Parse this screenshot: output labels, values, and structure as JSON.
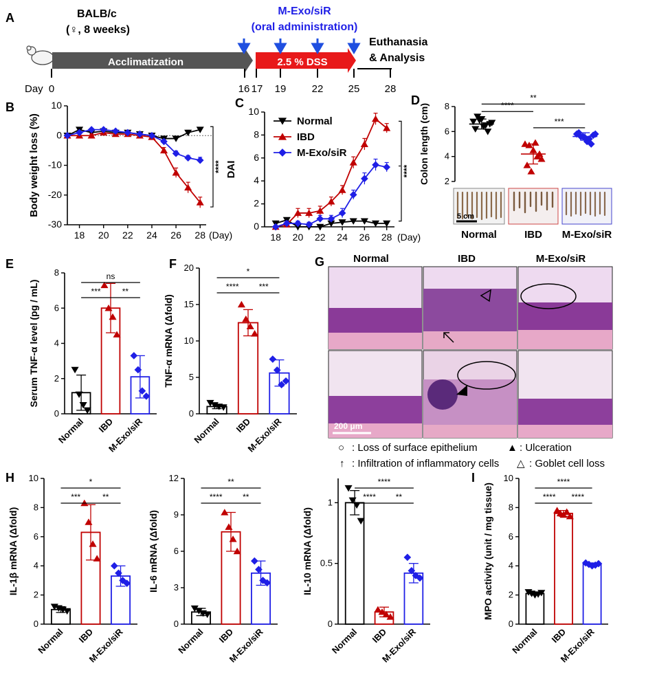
{
  "colors": {
    "normal": "#000000",
    "ibd": "#c00000",
    "mexo": "#1f1fe6",
    "dss": "#e8191a",
    "arrow_blue": "#1f4fe0",
    "accl": "#555555"
  },
  "panel_labels": [
    "A",
    "B",
    "C",
    "D",
    "E",
    "F",
    "G",
    "H",
    "I"
  ],
  "timeline": {
    "strain": "BALB/c",
    "strain_detail": "(♀, 8 weeks)",
    "treatment": "M-Exo/siR",
    "treatment_route": "(oral administration)",
    "acclimatization": "Acclimatization",
    "dss": "2.5 % DSS",
    "end_label_1": "Euthanasia",
    "end_label_2": "& Analysis",
    "day_label": "Day",
    "days": [
      "0",
      "16",
      "17",
      "19",
      "22",
      "25",
      "28"
    ],
    "dose_days": [
      16,
      19,
      22,
      25
    ]
  },
  "chart_data": [
    {
      "id": "B",
      "type": "line",
      "ylabel": "Body weight loss (%)",
      "xlabel": "(Day)",
      "ylim": [
        -30,
        10
      ],
      "yticks": [
        -30,
        -20,
        -10,
        0,
        10
      ],
      "xlim": [
        17,
        28.5
      ],
      "xticks": [
        18,
        20,
        22,
        24,
        26,
        28
      ],
      "significance": "****",
      "series": [
        {
          "name": "Normal",
          "marker": "tri-down",
          "x": [
            17,
            18,
            19,
            20,
            21,
            22,
            23,
            24,
            25,
            26,
            27,
            28
          ],
          "values": [
            0,
            2,
            1,
            1.5,
            1,
            1,
            0.5,
            0,
            -1,
            -1,
            1,
            2
          ],
          "err": [
            0.5,
            0.6,
            0.5,
            0.5,
            0.5,
            0.5,
            0.5,
            0.5,
            0.5,
            0.8,
            0.8,
            0.8
          ]
        },
        {
          "name": "IBD",
          "marker": "tri-up",
          "x": [
            17,
            18,
            19,
            20,
            21,
            22,
            23,
            24,
            25,
            26,
            27,
            28
          ],
          "values": [
            0,
            0,
            0,
            1,
            0.5,
            0.5,
            0,
            -0.5,
            -5,
            -12.5,
            -17.5,
            -22.5
          ],
          "err": [
            0.5,
            0.5,
            0.5,
            0.5,
            0.5,
            0.5,
            0.5,
            0.5,
            1,
            1.6,
            1.8,
            1.8
          ]
        },
        {
          "name": "M-Exo/siR",
          "marker": "diamond",
          "x": [
            17,
            18,
            19,
            20,
            21,
            22,
            23,
            24,
            25,
            26,
            27,
            28
          ],
          "values": [
            0,
            1,
            2,
            2,
            1.5,
            1,
            0.5,
            0,
            -2,
            -6,
            -7.5,
            -8.3
          ],
          "err": [
            0.4,
            0.4,
            0.4,
            0.4,
            0.4,
            0.4,
            0.4,
            0.4,
            0.6,
            0.8,
            0.8,
            1
          ]
        }
      ]
    },
    {
      "id": "C",
      "type": "line",
      "ylabel": "DAI",
      "xlabel": "(Day)",
      "ylim": [
        0,
        10
      ],
      "yticks": [
        0,
        2,
        4,
        6,
        8,
        10
      ],
      "xlim": [
        17,
        28.7
      ],
      "xticks": [
        18,
        20,
        22,
        24,
        26,
        28
      ],
      "significance": "****",
      "legend": [
        "Normal",
        "IBD",
        "M-Exo/siR"
      ],
      "series": [
        {
          "name": "Normal",
          "marker": "tri-down",
          "x": [
            18,
            19,
            20,
            21,
            22,
            23,
            24,
            25,
            26,
            27,
            28
          ],
          "values": [
            0.3,
            0.6,
            0,
            0,
            0,
            0.3,
            0.4,
            0.5,
            0.5,
            0.3,
            0.3
          ],
          "err": [
            0.2,
            0.2,
            0.1,
            0.1,
            0.1,
            0.1,
            0.1,
            0.1,
            0.1,
            0.1,
            0.1
          ]
        },
        {
          "name": "IBD",
          "marker": "tri-up",
          "x": [
            18,
            19,
            20,
            21,
            22,
            23,
            24,
            25,
            26,
            27,
            28
          ],
          "values": [
            0,
            0.2,
            1.2,
            1.2,
            1.4,
            2.2,
            3.2,
            5.6,
            7.2,
            9.4,
            8.6
          ],
          "err": [
            0.1,
            0.2,
            0.4,
            0.4,
            0.4,
            0.4,
            0.4,
            0.5,
            0.5,
            0.5,
            0.4
          ]
        },
        {
          "name": "M-Exo/siR",
          "marker": "diamond",
          "x": [
            18,
            19,
            20,
            21,
            22,
            23,
            24,
            25,
            26,
            27,
            28
          ],
          "values": [
            0,
            0.3,
            0.3,
            0.2,
            0.7,
            0.7,
            1.2,
            2.8,
            4.2,
            5.4,
            5.2
          ],
          "err": [
            0.1,
            0.2,
            0.2,
            0.2,
            0.3,
            0.3,
            0.4,
            0.4,
            0.5,
            0.5,
            0.4
          ]
        }
      ]
    },
    {
      "id": "D",
      "type": "scatter",
      "ylabel": "Colon length (cm)",
      "ylim": [
        2,
        8
      ],
      "yticks": [
        2,
        4,
        6,
        8
      ],
      "categories": [
        "Normal",
        "IBD",
        "M-Exo/siR"
      ],
      "means": [
        6.6,
        4.2,
        5.6
      ],
      "sd": [
        0.4,
        0.8,
        0.3
      ],
      "points": [
        [
          6.8,
          7.2,
          7.0,
          6.5,
          6.6,
          6.2,
          6.9,
          6.4,
          6.0,
          6.7
        ],
        [
          5.0,
          4.9,
          4.5,
          4.0,
          3.8,
          3.3,
          2.8,
          5.1,
          4.2
        ],
        [
          5.8,
          5.6,
          5.5,
          5.4,
          5.7,
          5.9,
          5.6,
          5.2,
          5.0,
          5.8
        ]
      ],
      "significance": [
        {
          "a": 0,
          "b": 1,
          "label": "****"
        },
        {
          "a": 1,
          "b": 2,
          "label": "***"
        },
        {
          "a": 0,
          "b": 2,
          "label": "**"
        }
      ],
      "photo_scale": "5 cm"
    },
    {
      "id": "E",
      "type": "bar",
      "ylabel": "Serum TNF-α level (pg / mL)",
      "ylim": [
        0,
        8
      ],
      "yticks": [
        0,
        2,
        4,
        6,
        8
      ],
      "categories": [
        "Normal",
        "IBD",
        "M-Exo/siR"
      ],
      "values": [
        1.2,
        6.0,
        2.1
      ],
      "err": [
        1.0,
        1.4,
        1.2
      ],
      "points": [
        [
          2.5,
          1.1,
          0.5,
          0.2
        ],
        [
          7.3,
          6.0,
          5.5,
          4.5
        ],
        [
          3.3,
          2.5,
          1.3,
          1.0
        ]
      ],
      "significance": [
        {
          "a": 0,
          "b": 1,
          "label": "***"
        },
        {
          "a": 1,
          "b": 2,
          "label": "**"
        },
        {
          "a": 0,
          "b": 2,
          "label": "ns"
        }
      ]
    },
    {
      "id": "F",
      "type": "bar",
      "ylabel": "TNF-α mRNA (Δfold)",
      "ylim": [
        0,
        20
      ],
      "yticks": [
        0,
        5,
        10,
        15,
        20
      ],
      "categories": [
        "Normal",
        "IBD",
        "M-Exo/siR"
      ],
      "values": [
        1.0,
        12.5,
        5.6
      ],
      "err": [
        0.3,
        1.8,
        1.8
      ],
      "points": [
        [
          1.5,
          1.2,
          1.0,
          0.9
        ],
        [
          15.0,
          13.0,
          12.0,
          11.0
        ],
        [
          7.5,
          6.0,
          4.0,
          4.5
        ]
      ],
      "significance": [
        {
          "a": 0,
          "b": 1,
          "label": "****"
        },
        {
          "a": 1,
          "b": 2,
          "label": "***"
        },
        {
          "a": 0,
          "b": 2,
          "label": "*"
        }
      ]
    },
    {
      "id": "H1",
      "type": "bar",
      "ylabel": "IL-1β mRNA (Δfold)",
      "ylim": [
        0,
        10
      ],
      "yticks": [
        0,
        2,
        4,
        6,
        8,
        10
      ],
      "categories": [
        "Normal",
        "IBD",
        "M-Exo/siR"
      ],
      "values": [
        1.0,
        6.3,
        3.3
      ],
      "err": [
        0.2,
        1.9,
        0.7
      ],
      "points": [
        [
          1.2,
          1.1,
          1.0,
          0.9
        ],
        [
          8.3,
          7.0,
          5.5,
          4.5
        ],
        [
          4.0,
          3.5,
          3.0,
          2.8
        ]
      ],
      "significance": [
        {
          "a": 0,
          "b": 1,
          "label": "***"
        },
        {
          "a": 1,
          "b": 2,
          "label": "**"
        },
        {
          "a": 0,
          "b": 2,
          "label": "*"
        }
      ]
    },
    {
      "id": "H2",
      "type": "bar",
      "ylabel": "IL-6 mRNA (Δfold)",
      "ylim": [
        0,
        12
      ],
      "yticks": [
        0,
        3,
        6,
        9,
        12
      ],
      "categories": [
        "Normal",
        "IBD",
        "M-Exo/siR"
      ],
      "values": [
        1.0,
        7.6,
        4.2
      ],
      "err": [
        0.3,
        1.6,
        1.0
      ],
      "points": [
        [
          1.3,
          1.1,
          0.9,
          0.8
        ],
        [
          9.2,
          8.0,
          7.0,
          6.0
        ],
        [
          5.2,
          4.5,
          3.6,
          3.4
        ]
      ],
      "significance": [
        {
          "a": 0,
          "b": 1,
          "label": "****"
        },
        {
          "a": 1,
          "b": 2,
          "label": "**"
        },
        {
          "a": 0,
          "b": 2,
          "label": "**"
        }
      ]
    },
    {
      "id": "H3",
      "type": "bar",
      "ylabel": "IL-10 mRNA (Δfold)",
      "ylim": [
        0,
        1.2
      ],
      "yticks": [
        0,
        0.5,
        1.0
      ],
      "categories": [
        "Normal",
        "IBD",
        "M-Exo/siR"
      ],
      "values": [
        1.0,
        0.1,
        0.42
      ],
      "err": [
        0.1,
        0.04,
        0.08
      ],
      "points": [
        [
          1.12,
          1.02,
          0.98,
          0.85
        ],
        [
          0.12,
          0.1,
          0.08,
          0.06
        ],
        [
          0.55,
          0.44,
          0.4,
          0.38
        ]
      ],
      "significance": [
        {
          "a": 0,
          "b": 1,
          "label": "****"
        },
        {
          "a": 1,
          "b": 2,
          "label": "**"
        },
        {
          "a": 0,
          "b": 2,
          "label": "****"
        }
      ]
    },
    {
      "id": "I",
      "type": "bar",
      "ylabel": "MPO activity (unit / mg tissue)",
      "ylim": [
        0,
        10
      ],
      "yticks": [
        0,
        2,
        4,
        6,
        8,
        10
      ],
      "categories": [
        "Normal",
        "IBD",
        "M-Exo/siR"
      ],
      "values": [
        2.1,
        7.6,
        4.1
      ],
      "err": [
        0.1,
        0.2,
        0.1
      ],
      "points": [
        [
          2.2,
          2.1,
          2.0,
          2.05,
          2.15
        ],
        [
          7.8,
          7.6,
          7.5,
          7.7,
          7.4
        ],
        [
          4.2,
          4.1,
          4.0,
          4.05,
          4.15
        ]
      ],
      "significance": [
        {
          "a": 0,
          "b": 1,
          "label": "****"
        },
        {
          "a": 1,
          "b": 2,
          "label": "****"
        },
        {
          "a": 0,
          "b": 2,
          "label": "****"
        }
      ]
    }
  ],
  "panel_g": {
    "columns": [
      "Normal",
      "IBD",
      "M-Exo/siR"
    ],
    "scale_bar": "200 μm",
    "legend": [
      {
        "symbol": "○",
        "text": ": Loss of surface epithelium"
      },
      {
        "symbol": "▲",
        "text": ": Ulceration"
      },
      {
        "symbol": "↑",
        "text": ": Infiltration of inflammatory cells"
      },
      {
        "symbol": "△",
        "text": ": Goblet cell loss"
      }
    ]
  }
}
